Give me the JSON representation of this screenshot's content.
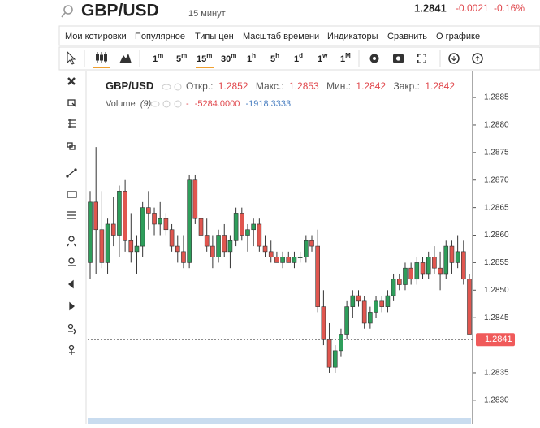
{
  "header": {
    "symbol": "GBP/USD",
    "interval": "15 минут",
    "price": "1.2841",
    "change": "-0.0021",
    "change_pct": "-0.16%"
  },
  "menu": [
    "Мои котировки",
    "Популярное",
    "Типы цен",
    "Масштаб времени",
    "Индикаторы",
    "Сравнить",
    "О графике"
  ],
  "intervals": [
    {
      "n": "1",
      "u": "m"
    },
    {
      "n": "5",
      "u": "m"
    },
    {
      "n": "15",
      "u": "m"
    },
    {
      "n": "30",
      "u": "m"
    },
    {
      "n": "1",
      "u": "h"
    },
    {
      "n": "5",
      "u": "h"
    },
    {
      "n": "1",
      "u": "d"
    },
    {
      "n": "1",
      "u": "w"
    },
    {
      "n": "1",
      "u": "M"
    }
  ],
  "legend": {
    "symbol": "GBP/USD",
    "open_label": "Откр.:",
    "open": "1.2852",
    "high_label": "Макс.:",
    "high": "1.2853",
    "low_label": "Мин.:",
    "low": "1.2842",
    "close_label": "Закр.:",
    "close": "1.2842",
    "volume_label": "Volume",
    "volume_param": "(9)",
    "volume_sep": "-",
    "volume_1": "-5284.0000",
    "volume_2": "-1918.3333"
  },
  "chart_data": {
    "type": "candlestick",
    "up_color": "#2e9e5b",
    "down_color": "#e0564f",
    "ylim": [
      1.28257,
      1.28887
    ],
    "yticks": [
      1.2885,
      {
        "value": 1.288,
        "label": "1.2880"
      },
      1.2875,
      {
        "value": 1.287,
        "label": "1.2870"
      },
      1.2865,
      {
        "value": 1.286,
        "label": "1.2860"
      },
      1.2855,
      {
        "value": 1.285,
        "label": "1.2850"
      },
      1.2845,
      1.2835,
      {
        "value": 1.283,
        "label": "1.2830"
      }
    ],
    "last_price": 1.2841,
    "open": [
      1.2855,
      1.2866,
      1.2861,
      1.2855,
      1.2862,
      1.286,
      1.2868,
      1.2859,
      1.2857,
      1.2858,
      1.2865,
      1.2864,
      1.2862,
      1.2863,
      1.2861,
      1.2858,
      1.2857,
      1.2855,
      1.287,
      1.2863,
      1.286,
      1.2858,
      1.2856,
      1.286,
      1.2857,
      1.2859,
      1.2864,
      1.286,
      1.2861,
      1.2862,
      1.2858,
      1.2857,
      1.2856,
      1.2855,
      1.2856,
      1.2855,
      1.2856,
      1.2856,
      1.2859,
      1.2858,
      1.2847,
      1.2841,
      1.2836,
      1.2839,
      1.2842,
      1.2847,
      1.2849,
      1.2848,
      1.2844,
      1.2846,
      1.2848,
      1.2847,
      1.2849,
      1.2852,
      1.2851,
      1.2854,
      1.2852,
      1.2855,
      1.2853,
      1.2856,
      1.2854,
      1.2853,
      1.2858,
      1.2855,
      1.2857,
      1.2852
    ],
    "high": [
      1.2868,
      1.2876,
      1.2868,
      1.2863,
      1.2867,
      1.2869,
      1.287,
      1.2864,
      1.286,
      1.2866,
      1.2868,
      1.2865,
      1.2866,
      1.2864,
      1.2862,
      1.286,
      1.286,
      1.2871,
      1.2871,
      1.2866,
      1.2863,
      1.286,
      1.2861,
      1.2862,
      1.286,
      1.2865,
      1.2865,
      1.2862,
      1.2863,
      1.2863,
      1.286,
      1.2859,
      1.2857,
      1.2857,
      1.2857,
      1.2857,
      1.2857,
      1.286,
      1.286,
      1.2861,
      1.285,
      1.2844,
      1.284,
      1.2843,
      1.2848,
      1.285,
      1.285,
      1.2849,
      1.2847,
      1.2849,
      1.2849,
      1.285,
      1.2853,
      1.2853,
      1.2855,
      1.2855,
      1.2856,
      1.2856,
      1.2857,
      1.2858,
      1.2857,
      1.2859,
      1.2859,
      1.286,
      1.2859,
      1.2853
    ],
    "low": [
      1.2852,
      1.2853,
      1.2854,
      1.2853,
      1.2858,
      1.2856,
      1.2857,
      1.2855,
      1.2853,
      1.2856,
      1.2861,
      1.286,
      1.286,
      1.286,
      1.2857,
      1.2855,
      1.2854,
      1.2854,
      1.2862,
      1.2859,
      1.2857,
      1.2854,
      1.2855,
      1.2856,
      1.2854,
      1.2858,
      1.2859,
      1.2857,
      1.2858,
      1.2857,
      1.2856,
      1.2855,
      1.2855,
      1.2854,
      1.2855,
      1.2854,
      1.2855,
      1.2855,
      1.2857,
      1.2846,
      1.284,
      1.2835,
      1.2835,
      1.2838,
      1.2841,
      1.2845,
      1.2847,
      1.2843,
      1.2843,
      1.2845,
      1.2846,
      1.2846,
      1.2848,
      1.285,
      1.285,
      1.2851,
      1.2851,
      1.2852,
      1.2852,
      1.2853,
      1.285,
      1.2852,
      1.2853,
      1.2854,
      1.2851,
      1.2842
    ],
    "close": [
      1.2866,
      1.2861,
      1.2855,
      1.2862,
      1.286,
      1.2868,
      1.2859,
      1.2857,
      1.2858,
      1.2865,
      1.2864,
      1.2862,
      1.2863,
      1.2861,
      1.2858,
      1.2857,
      1.2855,
      1.287,
      1.2863,
      1.286,
      1.2858,
      1.2856,
      1.286,
      1.2857,
      1.2859,
      1.2864,
      1.286,
      1.2861,
      1.2862,
      1.2858,
      1.2857,
      1.2856,
      1.2855,
      1.2856,
      1.2855,
      1.2856,
      1.2856,
      1.2859,
      1.2858,
      1.2847,
      1.2841,
      1.2836,
      1.2839,
      1.2842,
      1.2847,
      1.2849,
      1.2848,
      1.2844,
      1.2846,
      1.2848,
      1.2847,
      1.2849,
      1.2852,
      1.2851,
      1.2854,
      1.2852,
      1.2855,
      1.2853,
      1.2856,
      1.2854,
      1.2853,
      1.2858,
      1.2855,
      1.2857,
      1.2852,
      1.2842
    ]
  }
}
